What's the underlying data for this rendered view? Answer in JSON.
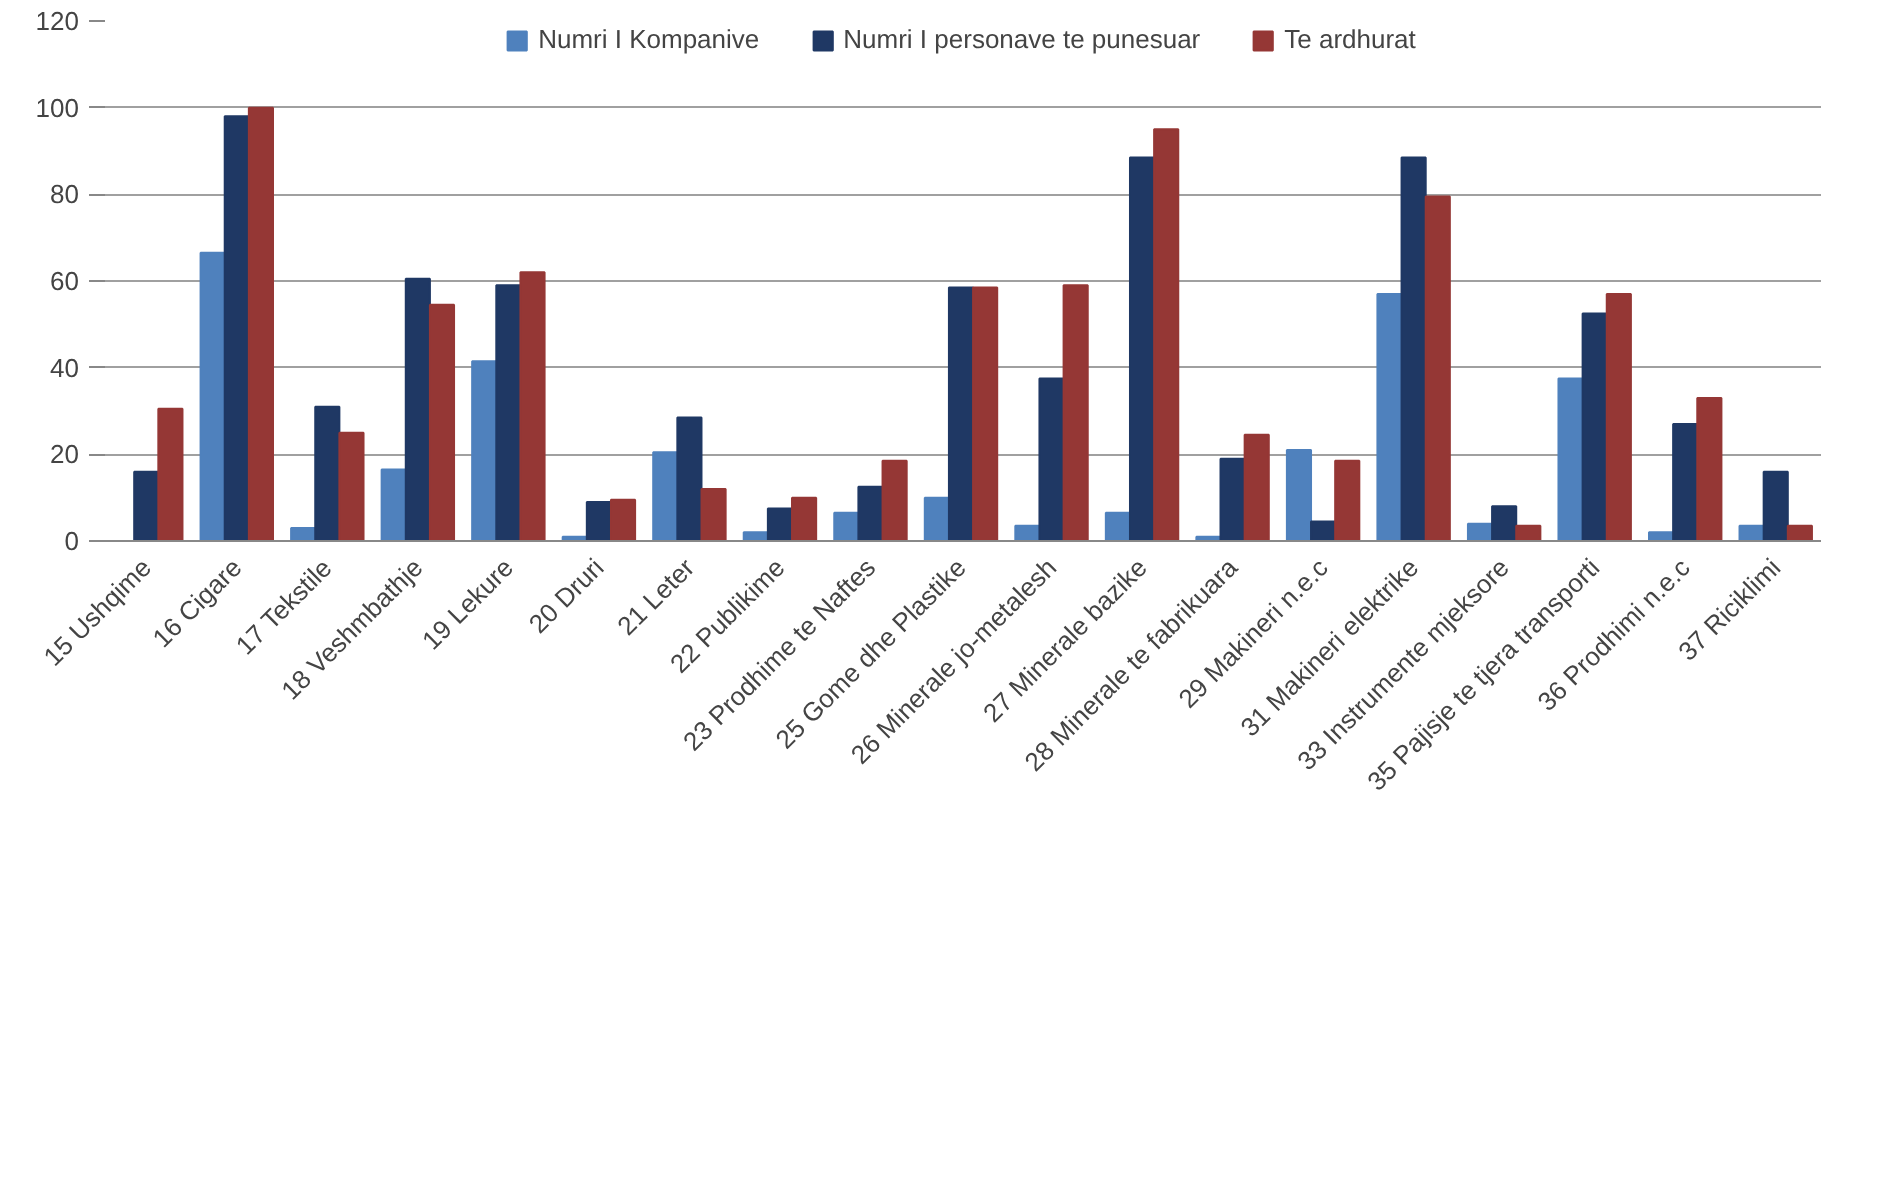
{
  "chart_data": {
    "type": "bar",
    "categories": [
      "15 Ushqime",
      "16 Cigare",
      "17 Tekstile",
      "18 Veshmbathje",
      "19 Lekure",
      "20 Druri",
      "21 Leter",
      "22 Publikime",
      "23 Prodhime te Naftes",
      "25 Gome dhe Plastike",
      "26 Minerale jo-metalesh",
      "27 Minerale bazike",
      "28 Minerale te fabrikuara",
      "29 Makineri n.e.c",
      "31 Makineri elektrike",
      "33 Instrumente mjeksore",
      "35 Pajisje te tjera transporti",
      "36 Prodhimi n.e.c",
      "37 Riciklimi"
    ],
    "series": [
      {
        "name": "Numri I Kompanive",
        "color": "#4f81bd",
        "values": [
          0,
          66.5,
          3,
          16.5,
          41.5,
          1,
          20.5,
          2,
          6.5,
          10,
          3.5,
          6.5,
          1,
          21,
          57,
          4,
          37.5,
          2,
          3.5
        ]
      },
      {
        "name": "Numri I personave te punesuar",
        "color": "#1f3864",
        "values": [
          16,
          98,
          31,
          60.5,
          59,
          9,
          28.5,
          7.5,
          12.5,
          58.5,
          37.5,
          88.5,
          19,
          4.5,
          88.5,
          8,
          52.5,
          27,
          16
        ]
      },
      {
        "name": "Te ardhurat",
        "color": "#953735",
        "values": [
          30.5,
          100,
          25,
          54.5,
          62,
          9.5,
          12,
          10,
          18.5,
          58.5,
          59,
          95,
          24.5,
          18.5,
          79.5,
          3.5,
          57,
          33,
          3.5
        ]
      }
    ],
    "ylim": [
      0,
      120
    ],
    "yticks": [
      0,
      20,
      40,
      60,
      80,
      100,
      120
    ],
    "grid": "y",
    "legend": "top"
  }
}
